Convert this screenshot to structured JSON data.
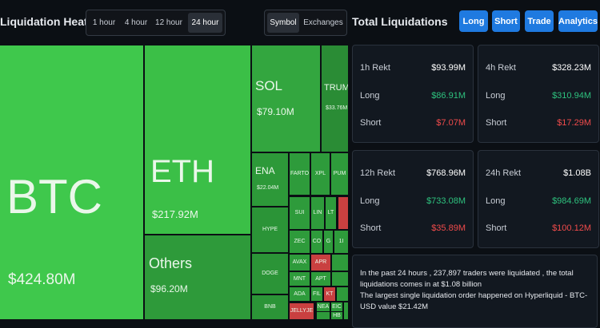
{
  "header": {
    "title": "Liquidation Heatmap",
    "time_tabs": [
      "1 hour",
      "4 hour",
      "12 hour",
      "24 hour"
    ],
    "view_tabs": [
      "Symbol",
      "Exchanges"
    ],
    "panel_title": "Total Liquidations",
    "buttons": [
      "Long",
      "Short",
      "Trade",
      "Analytics"
    ]
  },
  "treemap": {
    "tiles": [
      {
        "label": "BTC",
        "value": "$424.80M"
      },
      {
        "label": "ETH",
        "value": "$217.92M"
      },
      {
        "label": "Others",
        "value": "$96.20M"
      },
      {
        "label": "SOL",
        "value": "$79.10M"
      },
      {
        "label": "TRUM",
        "value": "$33.76M"
      },
      {
        "label": "ENA",
        "value": "$22.04M"
      },
      {
        "label": "FARTO"
      },
      {
        "label": "XPL"
      },
      {
        "label": "PUM"
      },
      {
        "label": "HYPE"
      },
      {
        "label": "SUI"
      },
      {
        "label": "LIN"
      },
      {
        "label": "LT"
      },
      {
        "label": "ZEC"
      },
      {
        "label": "CO"
      },
      {
        "label": "G"
      },
      {
        "label": "1I"
      },
      {
        "label": "DOGE"
      },
      {
        "label": "AVAX"
      },
      {
        "label": "APR"
      },
      {
        "label": "MNT"
      },
      {
        "label": "APT"
      },
      {
        "label": "ADA"
      },
      {
        "label": "FIL"
      },
      {
        "label": "KT"
      },
      {
        "label": "BNB"
      },
      {
        "label": "JELLYJE"
      },
      {
        "label": "NEA"
      },
      {
        "label": "EIC"
      },
      {
        "label": "HB"
      }
    ]
  },
  "cards": [
    {
      "title": "1h Rekt",
      "total": "$93.99M",
      "long_label": "Long",
      "long": "$86.91M",
      "short_label": "Short",
      "short": "$7.07M"
    },
    {
      "title": "4h Rekt",
      "total": "$328.23M",
      "long_label": "Long",
      "long": "$310.94M",
      "short_label": "Short",
      "short": "$17.29M"
    },
    {
      "title": "12h Rekt",
      "total": "$768.96M",
      "long_label": "Long",
      "long": "$733.08M",
      "short_label": "Short",
      "short": "$35.89M"
    },
    {
      "title": "24h Rekt",
      "total": "$1.08B",
      "long_label": "Long",
      "long": "$984.69M",
      "short_label": "Short",
      "short": "$100.12M"
    }
  ],
  "note": [
    "In the past 24 hours , 237,897 traders were liquidated , the total liquidations comes in at $1.08 billion",
    "The largest single liquidation order happened on Hyperliquid - BTC-USD value $21.42M"
  ]
}
